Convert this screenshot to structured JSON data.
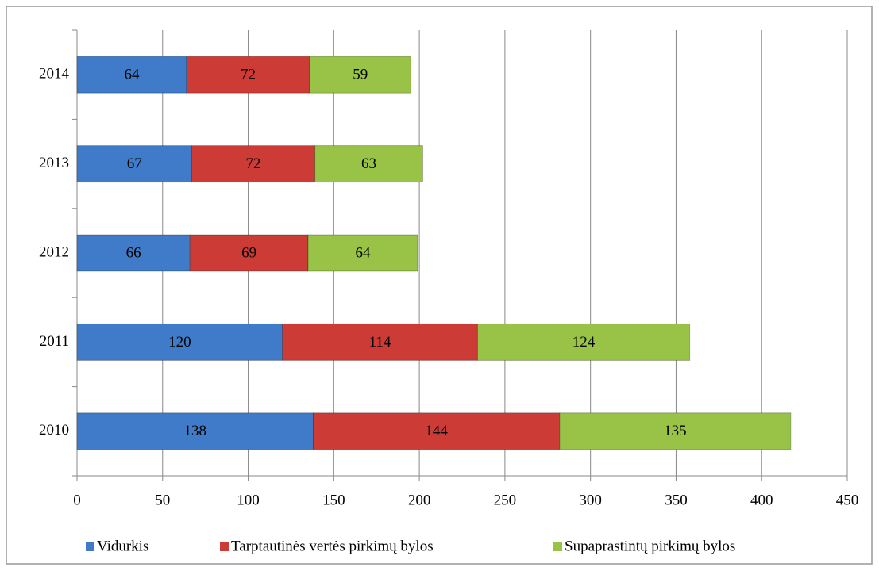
{
  "chart_data": {
    "type": "stacked_bar_horizontal",
    "categories": [
      "2010",
      "2011",
      "2012",
      "2013",
      "2014"
    ],
    "series": [
      {
        "name": "Vidurkis",
        "color": "#3f7bc8",
        "values": [
          138,
          120,
          66,
          67,
          64
        ]
      },
      {
        "name": "Tarptautinės vertės pirkimų bylos",
        "color": "#cc3b36",
        "values": [
          144,
          114,
          69,
          72,
          72
        ]
      },
      {
        "name": "Supaprastintų pirkimų bylos",
        "color": "#98c347",
        "values": [
          135,
          124,
          64,
          63,
          59
        ]
      }
    ],
    "xlim": [
      0,
      450
    ],
    "xticks": [
      0,
      50,
      100,
      150,
      200,
      250,
      300,
      350,
      400,
      450
    ],
    "grid": true,
    "legend": "bottom"
  }
}
